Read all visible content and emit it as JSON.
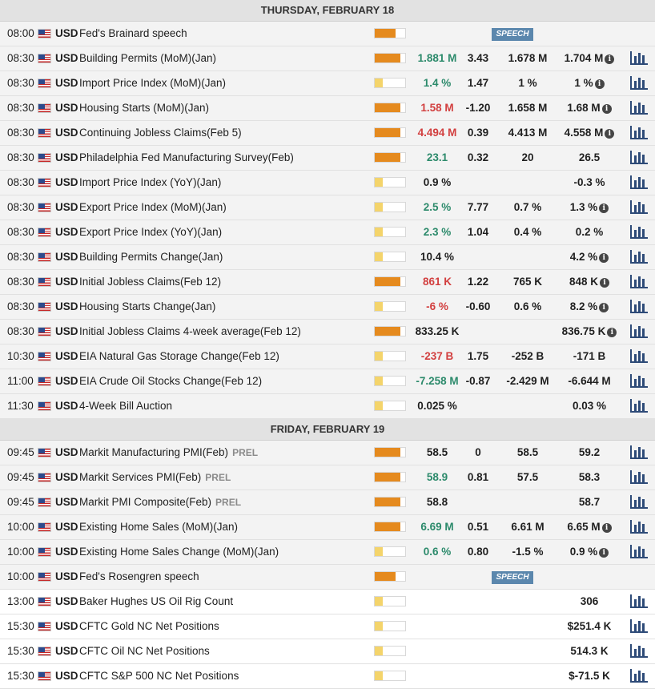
{
  "days": [
    {
      "header": "THURSDAY, FEBRUARY 18",
      "events": [
        {
          "time": "08:00",
          "currency": "USD",
          "name": "Fed's Brainard speech",
          "importance": "med",
          "badge": "SPEECH",
          "actual": "",
          "actual_trend": "neutral",
          "deviation": "",
          "consensus": "",
          "previous": "",
          "info": false,
          "chart": false,
          "shade": "dark"
        },
        {
          "time": "08:30",
          "currency": "USD",
          "name": "Building Permits (MoM)(Jan)",
          "importance": "high",
          "badge": "",
          "actual": "1.881 M",
          "actual_trend": "up",
          "deviation": "3.43",
          "consensus": "1.678 M",
          "previous": "1.704 M",
          "info": true,
          "chart": true,
          "shade": "dark"
        },
        {
          "time": "08:30",
          "currency": "USD",
          "name": "Import Price Index (MoM)(Jan)",
          "importance": "low",
          "badge": "",
          "actual": "1.4 %",
          "actual_trend": "up",
          "deviation": "1.47",
          "consensus": "1 %",
          "previous": "1 %",
          "info": true,
          "chart": true,
          "shade": "dark"
        },
        {
          "time": "08:30",
          "currency": "USD",
          "name": "Housing Starts (MoM)(Jan)",
          "importance": "high",
          "badge": "",
          "actual": "1.58 M",
          "actual_trend": "down",
          "deviation": "-1.20",
          "consensus": "1.658 M",
          "previous": "1.68 M",
          "info": true,
          "chart": true,
          "shade": "dark"
        },
        {
          "time": "08:30",
          "currency": "USD",
          "name": "Continuing Jobless Claims(Feb 5)",
          "importance": "high",
          "badge": "",
          "actual": "4.494 M",
          "actual_trend": "down",
          "deviation": "0.39",
          "consensus": "4.413 M",
          "previous": "4.558 M",
          "info": true,
          "chart": true,
          "shade": "dark"
        },
        {
          "time": "08:30",
          "currency": "USD",
          "name": "Philadelphia Fed Manufacturing Survey(Feb)",
          "importance": "high",
          "badge": "",
          "actual": "23.1",
          "actual_trend": "up",
          "deviation": "0.32",
          "consensus": "20",
          "previous": "26.5",
          "info": false,
          "chart": true,
          "shade": "dark"
        },
        {
          "time": "08:30",
          "currency": "USD",
          "name": "Import Price Index (YoY)(Jan)",
          "importance": "low",
          "badge": "",
          "actual": "0.9 %",
          "actual_trend": "neutral",
          "deviation": "",
          "consensus": "",
          "previous": "-0.3 %",
          "info": false,
          "chart": true,
          "shade": "dark"
        },
        {
          "time": "08:30",
          "currency": "USD",
          "name": "Export Price Index (MoM)(Jan)",
          "importance": "low",
          "badge": "",
          "actual": "2.5 %",
          "actual_trend": "up",
          "deviation": "7.77",
          "consensus": "0.7 %",
          "previous": "1.3 %",
          "info": true,
          "chart": true,
          "shade": "dark"
        },
        {
          "time": "08:30",
          "currency": "USD",
          "name": "Export Price Index (YoY)(Jan)",
          "importance": "low",
          "badge": "",
          "actual": "2.3 %",
          "actual_trend": "up",
          "deviation": "1.04",
          "consensus": "0.4 %",
          "previous": "0.2 %",
          "info": false,
          "chart": true,
          "shade": "dark"
        },
        {
          "time": "08:30",
          "currency": "USD",
          "name": "Building Permits Change(Jan)",
          "importance": "low",
          "badge": "",
          "actual": "10.4 %",
          "actual_trend": "neutral",
          "deviation": "",
          "consensus": "",
          "previous": "4.2 %",
          "info": true,
          "chart": true,
          "shade": "dark"
        },
        {
          "time": "08:30",
          "currency": "USD",
          "name": "Initial Jobless Claims(Feb 12)",
          "importance": "high",
          "badge": "",
          "actual": "861 K",
          "actual_trend": "down",
          "deviation": "1.22",
          "consensus": "765 K",
          "previous": "848 K",
          "info": true,
          "chart": true,
          "shade": "dark"
        },
        {
          "time": "08:30",
          "currency": "USD",
          "name": "Housing Starts Change(Jan)",
          "importance": "low",
          "badge": "",
          "actual": "-6 %",
          "actual_trend": "down",
          "deviation": "-0.60",
          "consensus": "0.6 %",
          "previous": "8.2 %",
          "info": true,
          "chart": true,
          "shade": "dark"
        },
        {
          "time": "08:30",
          "currency": "USD",
          "name": "Initial Jobless Claims 4-week average(Feb 12)",
          "importance": "high",
          "badge": "",
          "actual": "833.25 K",
          "actual_trend": "neutral",
          "deviation": "",
          "consensus": "",
          "previous": "836.75 K",
          "info": true,
          "chart": true,
          "shade": "dark"
        },
        {
          "time": "10:30",
          "currency": "USD",
          "name": "EIA Natural Gas Storage Change(Feb 12)",
          "importance": "low",
          "badge": "",
          "actual": "-237 B",
          "actual_trend": "down",
          "deviation": "1.75",
          "consensus": "-252 B",
          "previous": "-171 B",
          "info": false,
          "chart": true,
          "shade": "dark"
        },
        {
          "time": "11:00",
          "currency": "USD",
          "name": "EIA Crude Oil Stocks Change(Feb 12)",
          "importance": "low",
          "badge": "",
          "actual": "-7.258 M",
          "actual_trend": "up",
          "deviation": "-0.87",
          "consensus": "-2.429 M",
          "previous": "-6.644 M",
          "info": false,
          "chart": true,
          "shade": "dark"
        },
        {
          "time": "11:30",
          "currency": "USD",
          "name": "4-Week Bill Auction",
          "importance": "low",
          "badge": "",
          "actual": "0.025 %",
          "actual_trend": "neutral",
          "deviation": "",
          "consensus": "",
          "previous": "0.03 %",
          "info": false,
          "chart": true,
          "shade": "dark"
        }
      ]
    },
    {
      "header": "FRIDAY, FEBRUARY 19",
      "events": [
        {
          "time": "09:45",
          "currency": "USD",
          "name": "Markit Manufacturing PMI(Feb)",
          "tag": "PREL",
          "importance": "high",
          "badge": "",
          "actual": "58.5",
          "actual_trend": "neutral",
          "deviation": "0",
          "consensus": "58.5",
          "previous": "59.2",
          "info": false,
          "chart": true,
          "shade": "dark"
        },
        {
          "time": "09:45",
          "currency": "USD",
          "name": "Markit Services PMI(Feb)",
          "tag": "PREL",
          "importance": "high",
          "badge": "",
          "actual": "58.9",
          "actual_trend": "up",
          "deviation": "0.81",
          "consensus": "57.5",
          "previous": "58.3",
          "info": false,
          "chart": true,
          "shade": "dark"
        },
        {
          "time": "09:45",
          "currency": "USD",
          "name": "Markit PMI Composite(Feb)",
          "tag": "PREL",
          "importance": "high",
          "badge": "",
          "actual": "58.8",
          "actual_trend": "neutral",
          "deviation": "",
          "consensus": "",
          "previous": "58.7",
          "info": false,
          "chart": true,
          "shade": "dark"
        },
        {
          "time": "10:00",
          "currency": "USD",
          "name": "Existing Home Sales (MoM)(Jan)",
          "importance": "high",
          "badge": "",
          "actual": "6.69 M",
          "actual_trend": "up",
          "deviation": "0.51",
          "consensus": "6.61 M",
          "previous": "6.65 M",
          "info": true,
          "chart": true,
          "shade": "dark"
        },
        {
          "time": "10:00",
          "currency": "USD",
          "name": "Existing Home Sales Change (MoM)(Jan)",
          "importance": "low",
          "badge": "",
          "actual": "0.6 %",
          "actual_trend": "up",
          "deviation": "0.80",
          "consensus": "-1.5 %",
          "previous": "0.9 %",
          "info": true,
          "chart": true,
          "shade": "dark"
        },
        {
          "time": "10:00",
          "currency": "USD",
          "name": "Fed's Rosengren speech",
          "importance": "med",
          "badge": "SPEECH",
          "actual": "",
          "actual_trend": "neutral",
          "deviation": "",
          "consensus": "",
          "previous": "",
          "info": false,
          "chart": false,
          "shade": "dark"
        },
        {
          "time": "13:00",
          "currency": "USD",
          "name": "Baker Hughes US Oil Rig Count",
          "importance": "low",
          "badge": "",
          "actual": "",
          "actual_trend": "neutral",
          "deviation": "",
          "consensus": "",
          "previous": "306",
          "info": false,
          "chart": true,
          "shade": "light"
        },
        {
          "time": "15:30",
          "currency": "USD",
          "name": "CFTC Gold NC Net Positions",
          "importance": "low",
          "badge": "",
          "actual": "",
          "actual_trend": "neutral",
          "deviation": "",
          "consensus": "",
          "previous": "$251.4 K",
          "info": false,
          "chart": true,
          "shade": "light"
        },
        {
          "time": "15:30",
          "currency": "USD",
          "name": "CFTC Oil NC Net Positions",
          "importance": "low",
          "badge": "",
          "actual": "",
          "actual_trend": "neutral",
          "deviation": "",
          "consensus": "",
          "previous": "514.3 K",
          "info": false,
          "chart": true,
          "shade": "light"
        },
        {
          "time": "15:30",
          "currency": "USD",
          "name": "CFTC S&P 500 NC Net Positions",
          "importance": "low",
          "badge": "",
          "actual": "",
          "actual_trend": "neutral",
          "deviation": "",
          "consensus": "",
          "previous": "$-71.5 K",
          "info": false,
          "chart": true,
          "shade": "light"
        }
      ]
    }
  ],
  "icons": {
    "flag": "us-flag-icon",
    "info": "info-icon",
    "chart": "bar-chart-icon"
  },
  "colors": {
    "positive": "#2c8a6b",
    "negative": "#d23f3f",
    "importance": "#e58a1e",
    "importance_low": "#f4d46b",
    "speech_badge": "#5b87ad",
    "chart_icon": "#2e4b78"
  }
}
